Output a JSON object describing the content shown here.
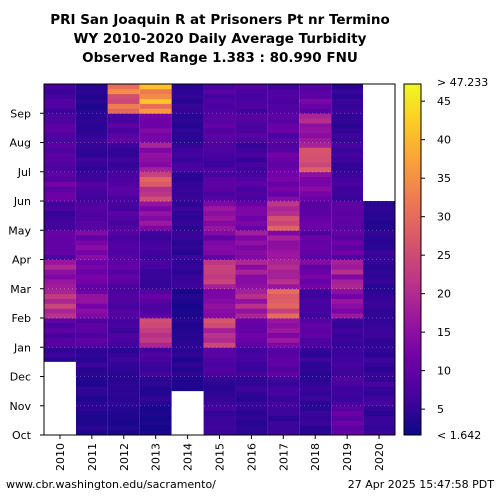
{
  "header": {
    "title_line1": "PRI San Joaquin R at Prisoners Pt nr Termino",
    "title_line2": "WY 2010-2020 Daily Average Turbidity",
    "title_line3": "Observed Range 1.383 : 80.990 FNU"
  },
  "footer": {
    "source_url": "www.cbr.washington.edu/sacramento/",
    "timestamp": "27 Apr 2025 15:47:58 PDT"
  },
  "colors": {
    "scale": [
      "#0d0887",
      "#46039f",
      "#7201a8",
      "#9c179e",
      "#bd3786",
      "#d8576b",
      "#ed7953",
      "#fb9f3a",
      "#fdca26",
      "#f0f921"
    ],
    "missing": "#ffffff",
    "gap_line": "#ffffff"
  },
  "chart_data": {
    "type": "heatmap",
    "title": "PRI San Joaquin R at Prisoners Pt nr Termino WY 2010-2020 Daily Average Turbidity",
    "x_categories": [
      "2010",
      "2011",
      "2012",
      "2013",
      "2014",
      "2015",
      "2016",
      "2017",
      "2018",
      "2019",
      "2020"
    ],
    "y_categories": [
      "Oct",
      "Nov",
      "Dec",
      "Jan",
      "Feb",
      "Mar",
      "Apr",
      "May",
      "Jun",
      "Jul",
      "Aug",
      "Sep"
    ],
    "colorbar": {
      "min": 1.642,
      "max": 47.233,
      "min_label": "< 1.642",
      "max_label": "> 47.233",
      "ticks": [
        "5",
        "10",
        "15",
        "20",
        "25",
        "30",
        "35",
        "40",
        "45"
      ],
      "tick_values": [
        5,
        10,
        15,
        20,
        25,
        30,
        35,
        40,
        45
      ]
    },
    "missing_data": [
      {
        "year": "2010",
        "from": "Oct",
        "to": "mid-Dec"
      },
      {
        "year": "2014",
        "from": "Oct",
        "to": "mid-Nov"
      },
      {
        "year": "2020",
        "from": "Jun",
        "to": "Sep"
      }
    ],
    "monthly_typical": [
      {
        "year": "2010",
        "values": [
          null,
          null,
          5,
          8,
          22,
          16,
          9,
          6,
          10,
          8,
          9,
          7
        ]
      },
      {
        "year": "2011",
        "values": [
          4,
          4,
          5,
          9,
          13,
          12,
          12,
          8,
          7,
          5,
          5,
          4
        ]
      },
      {
        "year": "2012",
        "values": [
          3,
          4,
          5,
          7,
          8,
          9,
          8,
          8,
          8,
          6,
          8,
          30
        ]
      },
      {
        "year": "2013",
        "values": [
          3,
          4,
          7,
          22,
          9,
          6,
          6,
          14,
          24,
          16,
          13,
          38
        ]
      },
      {
        "year": "2014",
        "values": [
          null,
          3,
          4,
          4,
          3,
          5,
          5,
          5,
          5,
          6,
          4,
          5
        ]
      },
      {
        "year": "2015",
        "values": [
          6,
          5,
          8,
          22,
          14,
          20,
          12,
          17,
          8,
          7,
          9,
          8
        ]
      },
      {
        "year": "2016",
        "values": [
          4,
          5,
          6,
          10,
          19,
          17,
          16,
          11,
          8,
          6,
          8,
          7
        ]
      },
      {
        "year": "2017",
        "values": [
          5,
          6,
          8,
          16,
          28,
          21,
          17,
          24,
          12,
          10,
          9,
          8
        ]
      },
      {
        "year": "2018",
        "values": [
          5,
          5,
          5,
          9,
          6,
          12,
          9,
          10,
          13,
          24,
          18,
          11
        ]
      },
      {
        "year": "2019",
        "values": [
          10,
          7,
          6,
          6,
          14,
          17,
          10,
          8,
          7,
          6,
          5,
          5
        ]
      },
      {
        "year": "2020",
        "values": [
          5,
          6,
          5,
          5,
          5,
          5,
          5,
          4,
          null,
          null,
          null,
          null
        ]
      }
    ]
  }
}
